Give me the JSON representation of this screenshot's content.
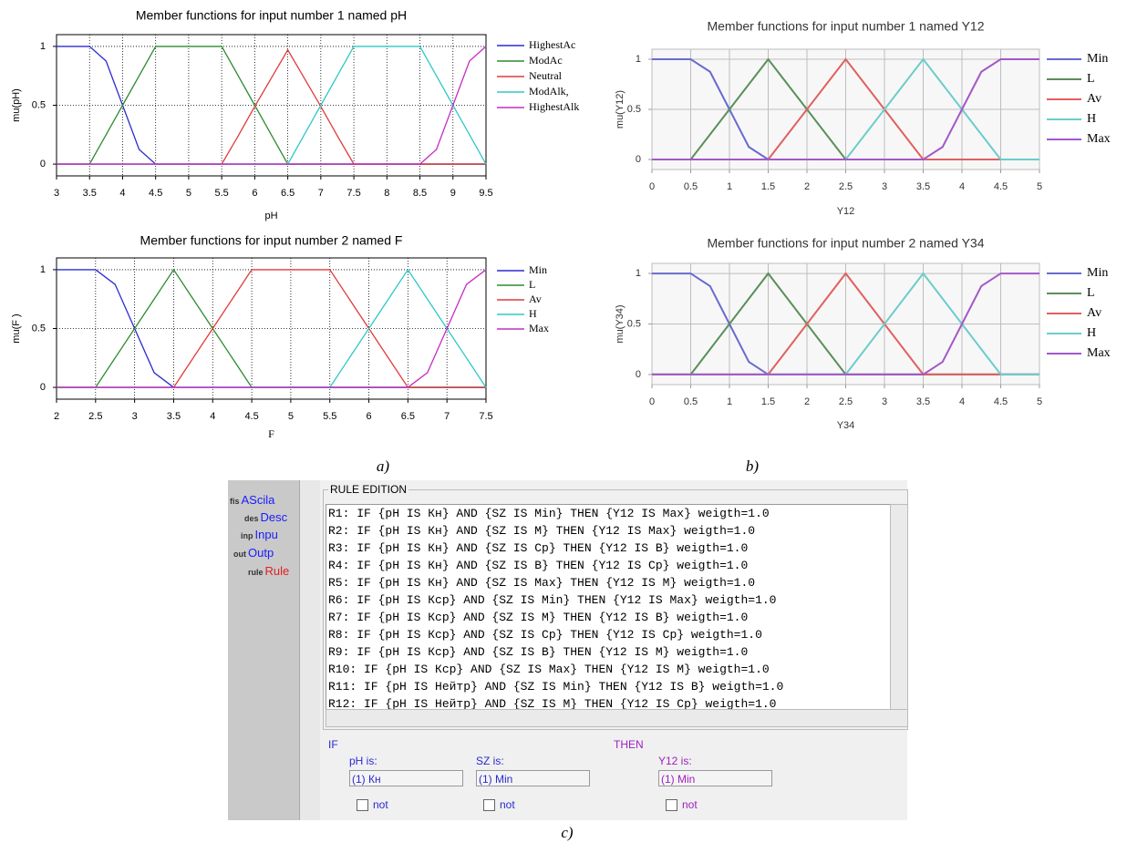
{
  "chart_data": [
    {
      "type": "line",
      "title": "Member functions for input number 1 named pH",
      "x_label": "pH",
      "y_label": "mu(pH)",
      "x": [
        3,
        3.25,
        3.5,
        3.75,
        4,
        4.25,
        4.5,
        4.75,
        5,
        5.25,
        5.5,
        5.75,
        6,
        6.25,
        6.5,
        6.75,
        7,
        7.25,
        7.5,
        7.75,
        8,
        8.25,
        8.5,
        8.75,
        9,
        9.25,
        9.5
      ],
      "xlim": [
        3,
        9.5
      ],
      "xticks": [
        3,
        3.5,
        4,
        4.5,
        5,
        5.5,
        6,
        6.5,
        7,
        7.5,
        8,
        8.5,
        9,
        9.5
      ],
      "ylim": [
        -0.1,
        1.1
      ],
      "yticks": [
        0,
        0.5,
        1
      ],
      "grid": true,
      "legend": "right",
      "series": [
        {
          "name": "HighestAc",
          "color": "#2b2bd0",
          "values": [
            1,
            1,
            1,
            0.875,
            0.5,
            0.125,
            0,
            0,
            0,
            0,
            0,
            0,
            0,
            0,
            0,
            0,
            0,
            0,
            0,
            0,
            0,
            0,
            0,
            0,
            0,
            0,
            0
          ]
        },
        {
          "name": "ModAc",
          "color": "#2e8b2e",
          "values": [
            0,
            0,
            0,
            0.25,
            0.5,
            0.75,
            1,
            1,
            1,
            1,
            1,
            0.75,
            0.5,
            0.25,
            0,
            0,
            0,
            0,
            0,
            0,
            0,
            0,
            0,
            0,
            0,
            0,
            0
          ]
        },
        {
          "name": "Neutral",
          "color": "#e03a3a",
          "values": [
            0,
            0,
            0,
            0,
            0,
            0,
            0,
            0,
            0,
            0,
            0,
            0.24,
            0.49,
            0.73,
            0.97,
            0.73,
            0.49,
            0.24,
            0,
            0,
            0,
            0,
            0,
            0,
            0,
            0,
            0
          ]
        },
        {
          "name": "ModAlk,",
          "color": "#2ec8c8",
          "values": [
            0,
            0,
            0,
            0,
            0,
            0,
            0,
            0,
            0,
            0,
            0,
            0,
            0,
            0,
            0,
            0.25,
            0.5,
            0.75,
            1,
            1,
            1,
            1,
            1,
            0.75,
            0.5,
            0.25,
            0
          ]
        },
        {
          "name": "HighestAlk",
          "color": "#c42ec4",
          "values": [
            0,
            0,
            0,
            0,
            0,
            0,
            0,
            0,
            0,
            0,
            0,
            0,
            0,
            0,
            0,
            0,
            0,
            0,
            0,
            0,
            0,
            0,
            0,
            0.125,
            0.5,
            0.875,
            1
          ]
        }
      ]
    },
    {
      "type": "line",
      "title": "Member functions for input number 2 named F",
      "x_label": "F",
      "y_label": "mu(F )",
      "x": [
        2,
        2.25,
        2.5,
        2.75,
        3,
        3.25,
        3.5,
        3.75,
        4,
        4.25,
        4.5,
        4.75,
        5,
        5.25,
        5.5,
        5.75,
        6,
        6.25,
        6.5,
        6.75,
        7,
        7.25,
        7.5
      ],
      "xlim": [
        2,
        7.5
      ],
      "xticks": [
        2,
        2.5,
        3,
        3.5,
        4,
        4.5,
        5,
        5.5,
        6,
        6.5,
        7,
        7.5
      ],
      "ylim": [
        -0.1,
        1.1
      ],
      "yticks": [
        0,
        0.5,
        1
      ],
      "grid": true,
      "legend": "right",
      "series": [
        {
          "name": "Min",
          "color": "#2b2bd0",
          "values": [
            1,
            1,
            1,
            0.875,
            0.5,
            0.125,
            0,
            0,
            0,
            0,
            0,
            0,
            0,
            0,
            0,
            0,
            0,
            0,
            0,
            0,
            0,
            0,
            0
          ]
        },
        {
          "name": "L",
          "color": "#2e8b2e",
          "values": [
            0,
            0,
            0,
            0.25,
            0.5,
            0.75,
            1,
            0.75,
            0.5,
            0.25,
            0,
            0,
            0,
            0,
            0,
            0,
            0,
            0,
            0,
            0,
            0,
            0,
            0
          ]
        },
        {
          "name": "Av",
          "color": "#e03a3a",
          "values": [
            0,
            0,
            0,
            0,
            0,
            0,
            0,
            0.25,
            0.5,
            0.75,
            1,
            1,
            1,
            1,
            1,
            0.75,
            0.5,
            0.25,
            0,
            0,
            0,
            0,
            0
          ]
        },
        {
          "name": "H",
          "color": "#2ec8c8",
          "values": [
            0,
            0,
            0,
            0,
            0,
            0,
            0,
            0,
            0,
            0,
            0,
            0,
            0,
            0,
            0,
            0.25,
            0.5,
            0.75,
            1,
            0.75,
            0.5,
            0.25,
            0
          ]
        },
        {
          "name": "Max",
          "color": "#c42ec4",
          "values": [
            0,
            0,
            0,
            0,
            0,
            0,
            0,
            0,
            0,
            0,
            0,
            0,
            0,
            0,
            0,
            0,
            0,
            0,
            0,
            0.125,
            0.5,
            0.875,
            1
          ]
        }
      ]
    },
    {
      "type": "line",
      "title": "Member functions for input number 1 named Y12",
      "x_label": "Y12",
      "y_label": "mu(Y12)",
      "x": [
        0,
        0.25,
        0.5,
        0.75,
        1,
        1.25,
        1.5,
        1.75,
        2,
        2.25,
        2.5,
        2.75,
        3,
        3.25,
        3.5,
        3.75,
        4,
        4.25,
        4.5,
        4.75,
        5
      ],
      "xlim": [
        0,
        5
      ],
      "xticks": [
        0,
        0.5,
        1,
        1.5,
        2,
        2.5,
        3,
        3.5,
        4,
        4.5,
        5
      ],
      "ylim": [
        -0.1,
        1.1
      ],
      "yticks": [
        0,
        0.5,
        1
      ],
      "grid": true,
      "legend": "right",
      "series": [
        {
          "name": "Min",
          "color": "#6a6ad0",
          "values": [
            1,
            1,
            1,
            0.875,
            0.5,
            0.125,
            0,
            0,
            0,
            0,
            0,
            0,
            0,
            0,
            0,
            0,
            0,
            0,
            0,
            0,
            0
          ]
        },
        {
          "name": "L",
          "color": "#5a8f5a",
          "values": [
            0,
            0,
            0,
            0.25,
            0.5,
            0.75,
            1,
            0.75,
            0.5,
            0.25,
            0,
            0,
            0,
            0,
            0,
            0,
            0,
            0,
            0,
            0,
            0
          ]
        },
        {
          "name": "Av",
          "color": "#e06060",
          "values": [
            0,
            0,
            0,
            0,
            0,
            0,
            0,
            0.25,
            0.5,
            0.75,
            1,
            0.75,
            0.5,
            0.25,
            0,
            0,
            0,
            0,
            0,
            0,
            0
          ]
        },
        {
          "name": "H",
          "color": "#6ccccc",
          "values": [
            0,
            0,
            0,
            0,
            0,
            0,
            0,
            0,
            0,
            0,
            0,
            0.25,
            0.5,
            0.75,
            1,
            0.75,
            0.5,
            0.25,
            0,
            0,
            0
          ]
        },
        {
          "name": "Max",
          "color": "#a458c8",
          "values": [
            0,
            0,
            0,
            0,
            0,
            0,
            0,
            0,
            0,
            0,
            0,
            0,
            0,
            0,
            0,
            0.125,
            0.5,
            0.875,
            1,
            1,
            1
          ]
        }
      ]
    },
    {
      "type": "line",
      "title": "Member functions for input number 2 named Y34",
      "x_label": "Y34",
      "y_label": "mu(Y34)",
      "x": [
        0,
        0.25,
        0.5,
        0.75,
        1,
        1.25,
        1.5,
        1.75,
        2,
        2.25,
        2.5,
        2.75,
        3,
        3.25,
        3.5,
        3.75,
        4,
        4.25,
        4.5,
        4.75,
        5
      ],
      "xlim": [
        0,
        5
      ],
      "xticks": [
        0,
        0.5,
        1,
        1.5,
        2,
        2.5,
        3,
        3.5,
        4,
        4.5,
        5
      ],
      "ylim": [
        -0.1,
        1.1
      ],
      "yticks": [
        0,
        0.5,
        1
      ],
      "grid": true,
      "legend": "right",
      "series": [
        {
          "name": "Min",
          "color": "#6a6ad0",
          "values": [
            1,
            1,
            1,
            0.875,
            0.5,
            0.125,
            0,
            0,
            0,
            0,
            0,
            0,
            0,
            0,
            0,
            0,
            0,
            0,
            0,
            0,
            0
          ]
        },
        {
          "name": "L",
          "color": "#5a8f5a",
          "values": [
            0,
            0,
            0,
            0.25,
            0.5,
            0.75,
            1,
            0.75,
            0.5,
            0.25,
            0,
            0,
            0,
            0,
            0,
            0,
            0,
            0,
            0,
            0,
            0
          ]
        },
        {
          "name": "Av",
          "color": "#e06060",
          "values": [
            0,
            0,
            0,
            0,
            0,
            0,
            0,
            0.25,
            0.5,
            0.75,
            1,
            0.75,
            0.5,
            0.25,
            0,
            0,
            0,
            0,
            0,
            0,
            0
          ]
        },
        {
          "name": "H",
          "color": "#6ccccc",
          "values": [
            0,
            0,
            0,
            0,
            0,
            0,
            0,
            0,
            0,
            0,
            0,
            0.25,
            0.5,
            0.75,
            1,
            0.75,
            0.5,
            0.25,
            0,
            0,
            0
          ]
        },
        {
          "name": "Max",
          "color": "#a458c8",
          "values": [
            0,
            0,
            0,
            0,
            0,
            0,
            0,
            0,
            0,
            0,
            0,
            0,
            0,
            0,
            0,
            0.125,
            0.5,
            0.875,
            1,
            1,
            1
          ]
        }
      ]
    }
  ],
  "panel_labels": [
    "a)",
    "b)",
    "c)"
  ],
  "rule_editor": {
    "tree": [
      {
        "icon": "fis",
        "label": "AScila"
      },
      {
        "icon": "des",
        "label": "Desc"
      },
      {
        "icon": "inp",
        "label": "Inpu"
      },
      {
        "icon": "out",
        "label": "Outp"
      },
      {
        "icon": "rule",
        "label": "Rule"
      }
    ],
    "group_title": "RULE EDITION",
    "rules": [
      "R1: IF {pH IS Кн} AND {SZ IS Min} THEN {Y12 IS Max} weigth=1.0",
      "R2: IF {pH IS Кн} AND {SZ IS M} THEN {Y12 IS Max} weigth=1.0",
      "R3: IF {pH IS Кн} AND {SZ IS Ср} THEN {Y12 IS В} weigth=1.0",
      "R4: IF {pH IS Кн} AND {SZ IS В} THEN {Y12 IS Ср} weigth=1.0",
      "R5: IF {pH IS Кн} AND {SZ IS Max} THEN {Y12 IS М} weigth=1.0",
      "R6: IF {pH IS Кср} AND {SZ IS Min} THEN {Y12 IS Max} weigth=1.0",
      "R7: IF {pH IS Кср} AND {SZ IS M} THEN {Y12 IS В} weigth=1.0",
      "R8: IF {pH IS Кср} AND {SZ IS Ср} THEN {Y12 IS Ср} weigth=1.0",
      "R9: IF {pH IS Кср} AND {SZ IS В} THEN {Y12 IS М} weigth=1.0",
      "R10: IF {pH IS Кср} AND {SZ IS Max} THEN {Y12 IS М} weigth=1.0",
      "R11: IF {pH IS Нейтр} AND {SZ IS Min} THEN {Y12 IS В} weigth=1.0",
      "R12: IF {pH IS Нейтр} AND {SZ IS M} THEN {Y12 IS Ср} weigth=1.0"
    ],
    "if_label": "IF",
    "then_label": "THEN",
    "selectors": [
      {
        "label": "pH is:",
        "value": "(1) Кн",
        "not": "not"
      },
      {
        "label": "SZ is:",
        "value": "(1) Min",
        "not": "not"
      },
      {
        "label": "Y12 is:",
        "value": "(1) Min",
        "not": "not"
      }
    ]
  }
}
